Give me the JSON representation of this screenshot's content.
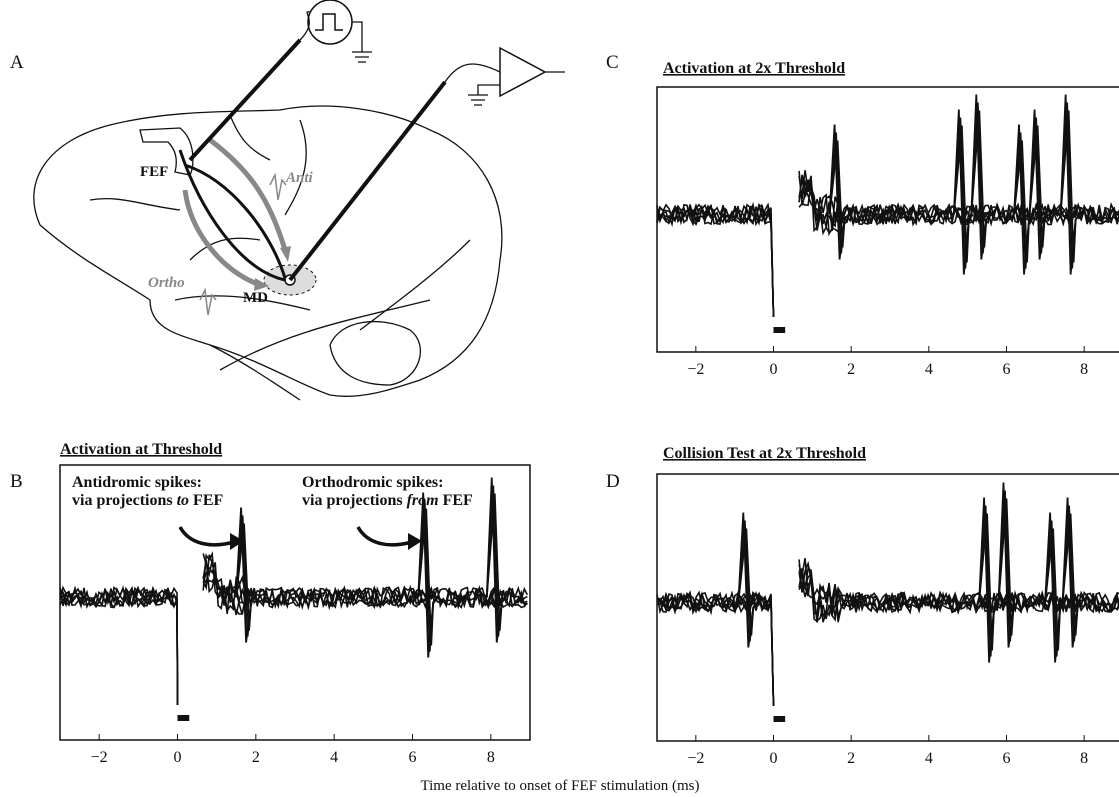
{
  "figure": {
    "xlabel": "Time relative to onset of FEF stimulation (ms)",
    "panel_a": {
      "label": "A",
      "fef": "FEF",
      "md": "MD",
      "anti": "Anti",
      "ortho": "Ortho"
    },
    "panels": [
      {
        "label": "B",
        "title": "Activation at Threshold",
        "xlim": [
          -3,
          9
        ],
        "xticks": [
          {
            "value": -2,
            "label": "−2"
          },
          0,
          2,
          4,
          6,
          8
        ],
        "stimulus": [
          0,
          0.3
        ],
        "spikes": [
          1.7,
          6.35,
          8.1
        ],
        "annotations": [
          {
            "lines": [
              [
                "Antidromic spikes:"
              ],
              [
                "via projections ",
                "to",
                " FEF"
              ]
            ]
          },
          {
            "lines": [
              [
                "Orthodromic spikes:"
              ],
              [
                "via projections ",
                "from",
                " FEF"
              ]
            ]
          }
        ]
      },
      {
        "label": "C",
        "title": "Activation at 2x Threshold",
        "xlim": [
          -3,
          9
        ],
        "xticks": [
          {
            "value": -2,
            "label": "−2"
          },
          0,
          2,
          4,
          6,
          8
        ],
        "stimulus": [
          0,
          0.3
        ],
        "spikes": [
          1.65,
          4.85,
          5.3,
          6.4,
          6.8,
          7.6
        ],
        "annotations": []
      },
      {
        "label": "D",
        "title": "Collision Test at 2x Threshold",
        "xlim": [
          -3,
          9
        ],
        "xticks": [
          {
            "value": -2,
            "label": "−2"
          },
          0,
          2,
          4,
          6,
          8
        ],
        "stimulus": [
          0,
          0.3
        ],
        "spikes": [
          -0.7,
          5.5,
          6.0,
          7.2,
          7.65
        ],
        "annotations": []
      }
    ]
  }
}
